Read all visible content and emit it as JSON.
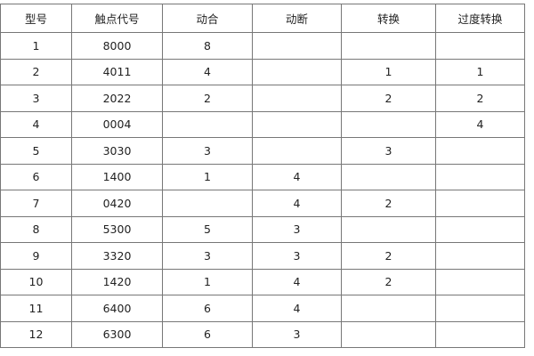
{
  "headers": [
    "型号",
    "触点代号",
    "动合",
    "动断",
    "转换",
    "过度转换"
  ],
  "rows": [
    [
      "1",
      "8000",
      "8",
      "",
      "",
      ""
    ],
    [
      "2",
      "4011",
      "4",
      "",
      "1",
      "1"
    ],
    [
      "3",
      "2022",
      "2",
      "",
      "2",
      "2"
    ],
    [
      "4",
      "0004",
      "",
      "",
      "",
      "4"
    ],
    [
      "5",
      "3030",
      "3",
      "",
      "3",
      ""
    ],
    [
      "6",
      "1400",
      "1",
      "4",
      "",
      ""
    ],
    [
      "7",
      "0420",
      "",
      "4",
      "2",
      ""
    ],
    [
      "8",
      "5300",
      "5",
      "3",
      "",
      ""
    ],
    [
      "9",
      "3320",
      "3",
      "3",
      "2",
      ""
    ],
    [
      "10",
      "1420",
      "1",
      "4",
      "2",
      ""
    ],
    [
      "11",
      "6400",
      "6",
      "4",
      "",
      ""
    ],
    [
      "12",
      "6300",
      "6",
      "3",
      "",
      ""
    ]
  ]
}
